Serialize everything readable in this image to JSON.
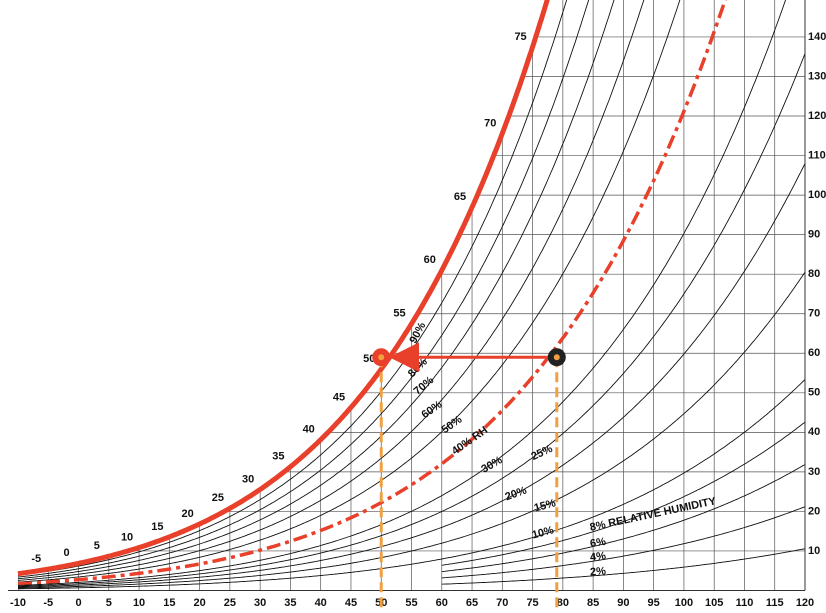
{
  "chart_data": {
    "type": "psychrometric",
    "xlim": [
      -10,
      120
    ],
    "xticks": [
      -10,
      -5,
      0,
      5,
      10,
      15,
      20,
      25,
      30,
      35,
      40,
      45,
      50,
      55,
      60,
      65,
      70,
      75,
      80,
      85,
      90,
      95,
      100,
      105,
      110,
      115,
      120
    ],
    "ylim": [
      0,
      150
    ],
    "yticks": [
      10,
      20,
      30,
      40,
      50,
      60,
      70,
      80,
      90,
      100,
      110,
      120,
      130,
      140
    ],
    "saturation_rh": 100,
    "saturation_color": "#e8402a",
    "saturation_labels": [
      -5,
      0,
      5,
      10,
      15,
      20,
      25,
      30,
      35,
      40,
      45,
      50,
      55,
      60,
      65,
      70,
      75
    ],
    "rh_curves": [
      {
        "value": 90,
        "label": "90%"
      },
      {
        "value": 80,
        "label": "80%"
      },
      {
        "value": 70,
        "label": "70%"
      },
      {
        "value": 60,
        "label": "60%"
      },
      {
        "value": 50,
        "label": "50%"
      },
      {
        "value": 40,
        "label": "40% RH",
        "color": "#e8402a"
      },
      {
        "value": 30,
        "label": "30%"
      },
      {
        "value": 25,
        "label": "25%"
      },
      {
        "value": 20,
        "label": "20%"
      },
      {
        "value": 15,
        "label": "15%"
      },
      {
        "value": 10,
        "label": "10%"
      },
      {
        "value": 8,
        "label": "8% RELATIVE HUMIDITY"
      },
      {
        "value": 6,
        "label": "6%"
      },
      {
        "value": 4,
        "label": "4%"
      },
      {
        "value": 2,
        "label": "2%"
      }
    ],
    "points": [
      {
        "x": 79,
        "y": 59,
        "color": "#222222"
      },
      {
        "x": 50,
        "y": 59,
        "color": "#e8402a"
      }
    ],
    "guide_color": "#f0a040",
    "grid": true
  }
}
